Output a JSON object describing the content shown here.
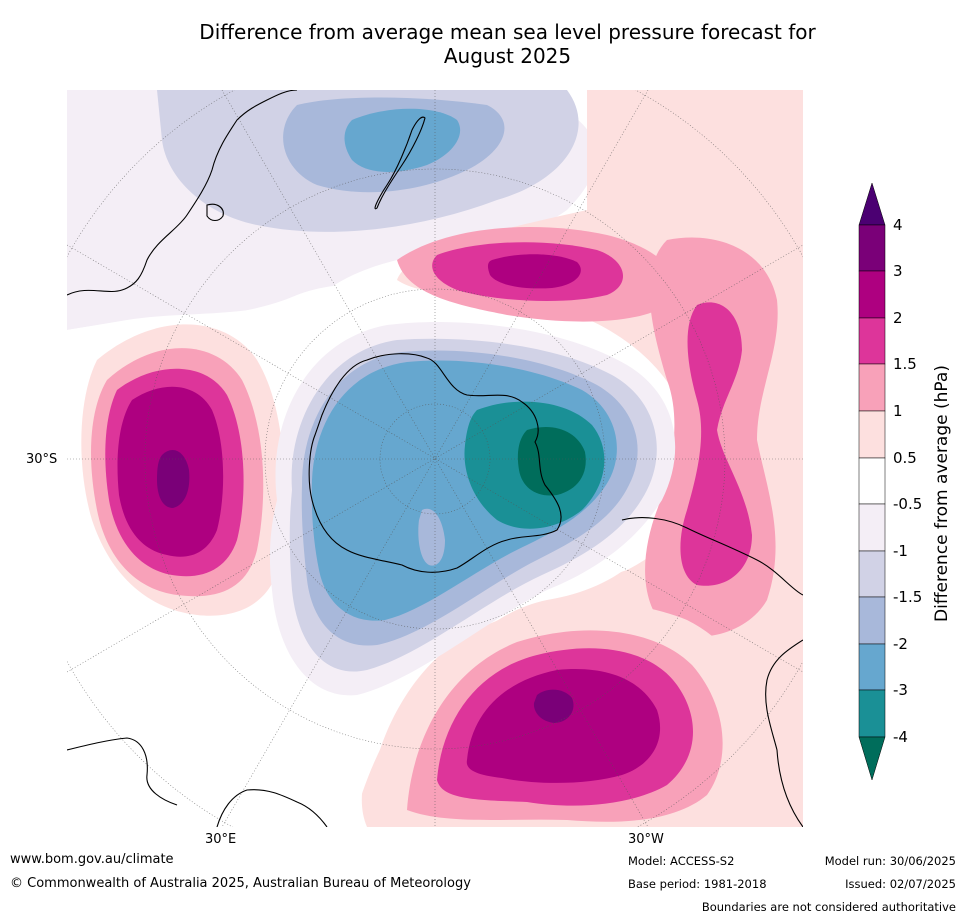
{
  "title": {
    "line1": "Difference from average mean sea level pressure forecast for",
    "line2": "August 2025"
  },
  "map": {
    "projection": "south-polar-stereographic",
    "lat_label_left": "30°S",
    "lon_label_bottom_left": "30°E",
    "lon_label_bottom_right": "30°W",
    "anomaly_centres": [
      {
        "region": "Southern Indian Ocean (west of Antarctica in view)",
        "peak_hPa": 4,
        "sign": "positive"
      },
      {
        "region": "Southern Atlantic (bottom centre)",
        "peak_hPa": 4,
        "sign": "positive"
      },
      {
        "region": "Tasman Sea / south of New Zealand east",
        "peak_hPa": 3,
        "sign": "positive"
      },
      {
        "region": "South-east Pacific west of Chile",
        "peak_hPa": 2,
        "sign": "positive"
      },
      {
        "region": "Weddell / Bellingshausen sector of Antarctica",
        "peak_hPa": -4,
        "sign": "negative"
      },
      {
        "region": "East Antarctica",
        "peak_hPa": -3,
        "sign": "negative"
      },
      {
        "region": "South of Australia / west of New Zealand",
        "peak_hPa": -3,
        "sign": "negative"
      }
    ]
  },
  "colorbar": {
    "label": "Difference from average (hPa)",
    "ticks": [
      "4",
      "3",
      "2",
      "1.5",
      "1",
      "0.5",
      "-0.5",
      "-1",
      "-1.5",
      "-2",
      "-3",
      "-4"
    ],
    "colors_top_to_bottom": [
      "#4b0072",
      "#7a0078",
      "#ae0080",
      "#dd359a",
      "#f8a1b9",
      "#fde0df",
      "#ffffff",
      "#f4eef6",
      "#d1d2e6",
      "#a8b8da",
      "#66a7cf",
      "#1a9096",
      "#006d5b"
    ]
  },
  "footer": {
    "website": "www.bom.gov.au/climate",
    "copyright": "© Commonwealth of Australia 2025, Australian Bureau of Meteorology",
    "model": "Model: ACCESS-S2",
    "base_period": "Base period: 1981-2018",
    "model_run": "Model run: 30/06/2025",
    "issued": "Issued: 02/07/2025",
    "disclaimer": "Boundaries are not considered authoritative"
  }
}
